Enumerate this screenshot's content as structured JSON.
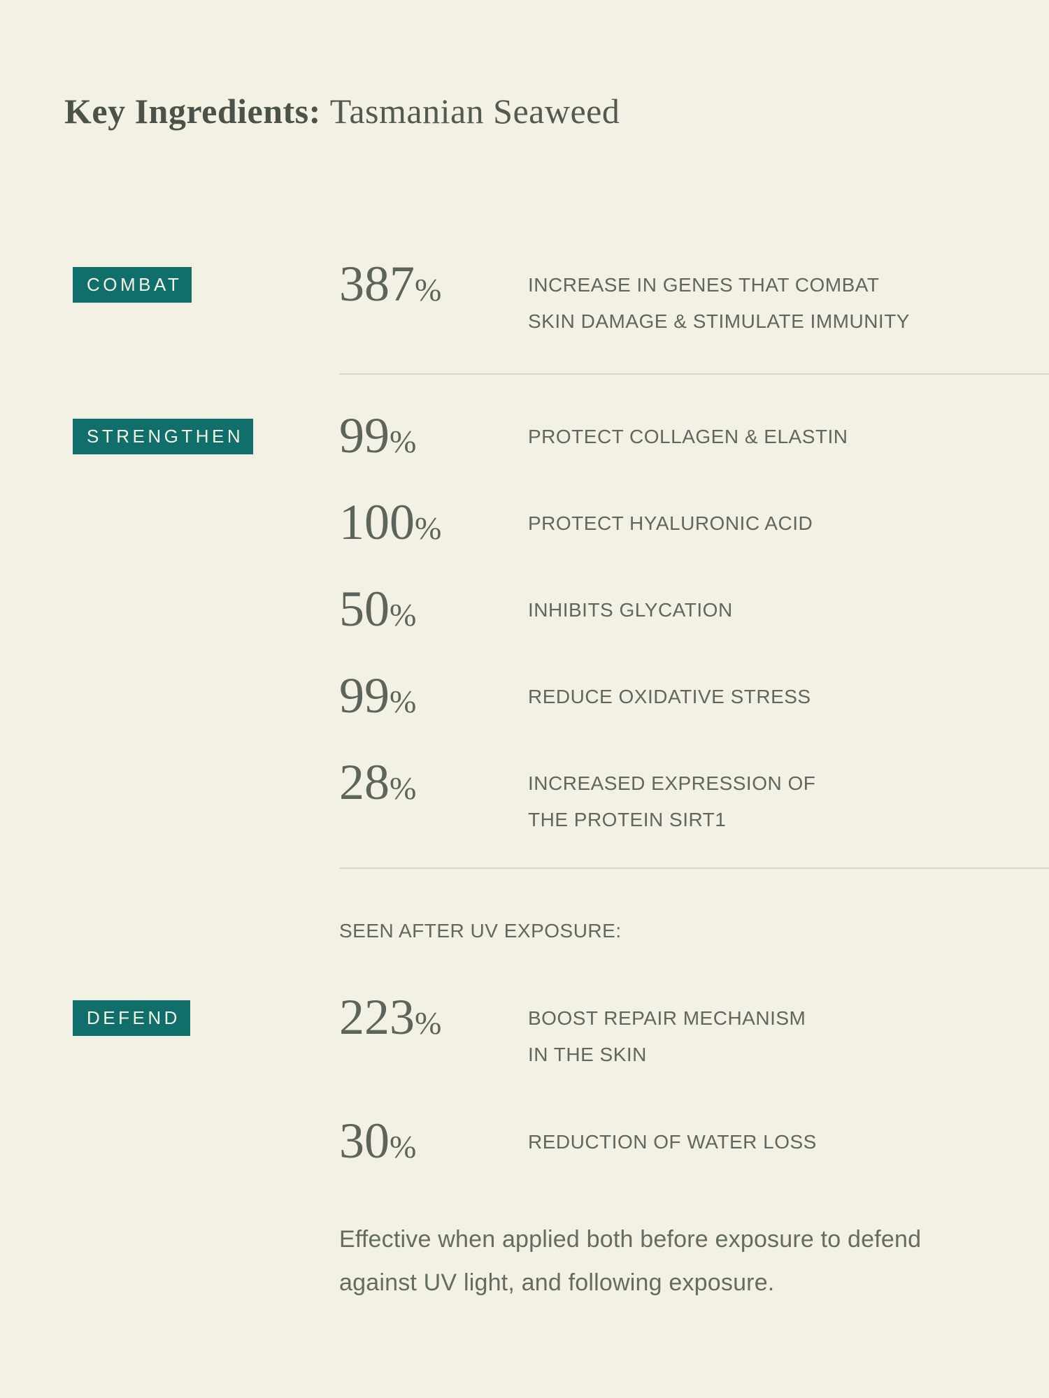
{
  "page": {
    "title_bold": "Key Ingredients:",
    "title_regular": "Tasmanian Seaweed"
  },
  "colors": {
    "background": "#f3f1e3",
    "badge_teal": "#106f6b",
    "title_text": "#4a524a",
    "number_text": "#5c645b",
    "body_text": "#5f6760",
    "divider": "#d8d8c9"
  },
  "sections": [
    {
      "badge": "COMBAT",
      "stats": [
        {
          "value": "387",
          "unit": "%",
          "lines": [
            "INCREASE IN GENES THAT COMBAT",
            "SKIN DAMAGE & STIMULATE IMMUNITY"
          ]
        }
      ]
    },
    {
      "badge": "STRENGTHEN",
      "stats": [
        {
          "value": "99",
          "unit": "%",
          "lines": [
            "PROTECT COLLAGEN & ELASTIN"
          ]
        },
        {
          "value": "100",
          "unit": "%",
          "lines": [
            "PROTECT HYALURONIC ACID"
          ]
        },
        {
          "value": "50",
          "unit": "%",
          "lines": [
            "INHIBITS GLYCATION"
          ]
        },
        {
          "value": "99",
          "unit": "%",
          "lines": [
            "REDUCE OXIDATIVE STRESS"
          ]
        },
        {
          "value": "28",
          "unit": "%",
          "lines": [
            "INCREASED EXPRESSION OF",
            "THE PROTEIN SIRT1"
          ]
        }
      ]
    },
    {
      "badge": "DEFEND",
      "lead_in": "SEEN AFTER UV EXPOSURE:",
      "stats": [
        {
          "value": "223",
          "unit": "%",
          "lines": [
            "BOOST REPAIR MECHANISM",
            "IN THE SKIN"
          ]
        },
        {
          "value": "30",
          "unit": "%",
          "lines": [
            "REDUCTION OF WATER LOSS"
          ]
        }
      ],
      "footnote": "Effective when applied both before exposure to defend against UV light, and following exposure."
    }
  ],
  "chart_data": {
    "type": "table",
    "title": "Key Ingredients: Tasmanian Seaweed",
    "legend_position": "left",
    "groups": [
      {
        "group": "COMBAT",
        "rows": [
          {
            "value": 387,
            "unit": "%",
            "label": "INCREASE IN GENES THAT COMBAT SKIN DAMAGE & STIMULATE IMMUNITY"
          }
        ]
      },
      {
        "group": "STRENGTHEN",
        "rows": [
          {
            "value": 99,
            "unit": "%",
            "label": "PROTECT COLLAGEN & ELASTIN"
          },
          {
            "value": 100,
            "unit": "%",
            "label": "PROTECT HYALURONIC ACID"
          },
          {
            "value": 50,
            "unit": "%",
            "label": "INHIBITS GLYCATION"
          },
          {
            "value": 99,
            "unit": "%",
            "label": "REDUCE OXIDATIVE STRESS"
          },
          {
            "value": 28,
            "unit": "%",
            "label": "INCREASED EXPRESSION OF THE PROTEIN SIRT1"
          }
        ]
      },
      {
        "group": "DEFEND",
        "condition": "SEEN AFTER UV EXPOSURE:",
        "rows": [
          {
            "value": 223,
            "unit": "%",
            "label": "BOOST REPAIR MECHANISM IN THE SKIN"
          },
          {
            "value": 30,
            "unit": "%",
            "label": "REDUCTION OF WATER LOSS"
          }
        ],
        "note": "Effective when applied both before exposure to defend against UV light, and following exposure."
      }
    ]
  }
}
